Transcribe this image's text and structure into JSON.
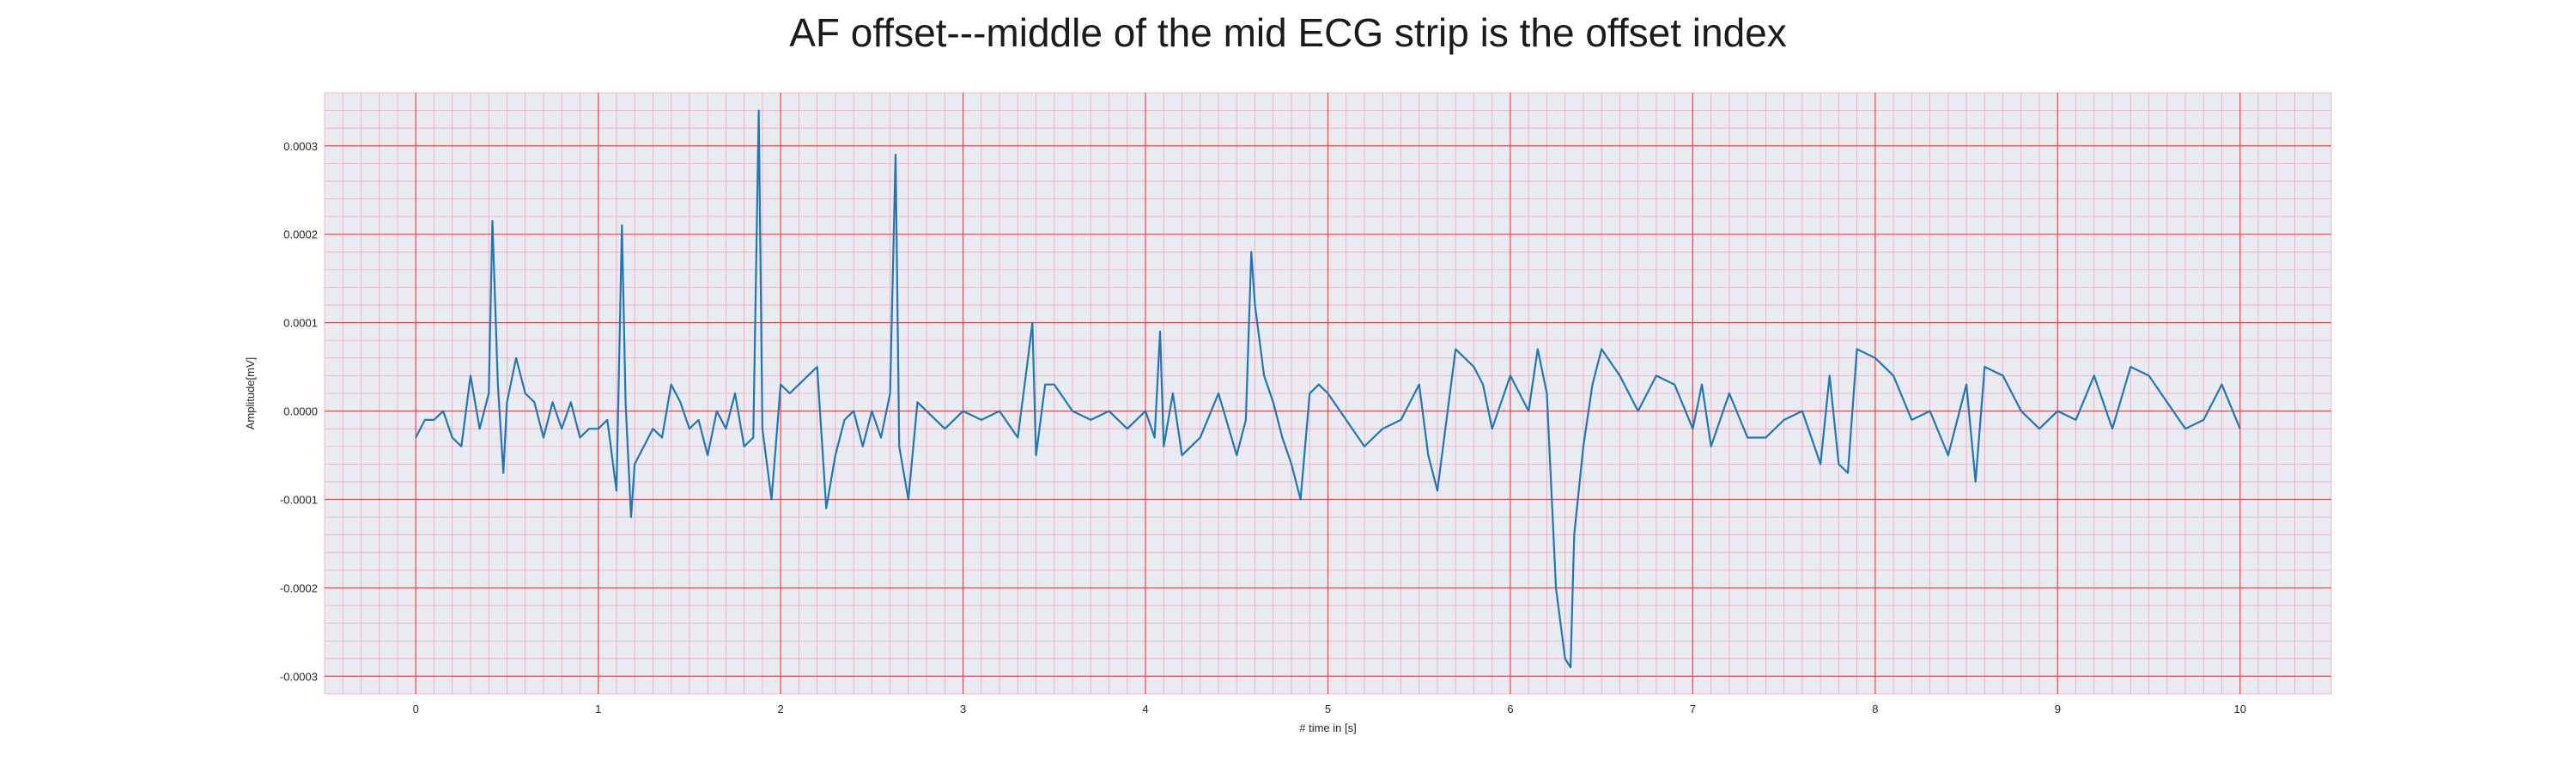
{
  "colors": {
    "plot_background": "#eaeaf2",
    "major_grid": "#ff4040",
    "minor_grid": "#f2a6b8",
    "line": "#1f77b4"
  },
  "chart_data": {
    "type": "line",
    "title": "AF offset---middle of the mid ECG strip is the offset index",
    "xlabel": "# time in [s]",
    "ylabel": "Amplitude[mV]",
    "xlim": [
      -0.5,
      10.5
    ],
    "ylim": [
      -0.00032,
      0.00036
    ],
    "xticks": [
      0,
      1,
      2,
      3,
      4,
      5,
      6,
      7,
      8,
      9,
      10
    ],
    "xtick_labels": [
      "0",
      "1",
      "2",
      "3",
      "4",
      "5",
      "6",
      "7",
      "8",
      "9",
      "10"
    ],
    "yticks": [
      -0.0003,
      -0.0002,
      -0.0001,
      0.0,
      0.0001,
      0.0002,
      0.0003
    ],
    "ytick_labels": [
      "-0.0003",
      "-0.0002",
      "-0.0001",
      "0.0000",
      "0.0001",
      "0.0002",
      "0.0003"
    ],
    "grid": true,
    "minor_grid": true,
    "series": [
      {
        "x": [
          0,
          0.05,
          0.1,
          0.15,
          0.2,
          0.25,
          0.3,
          0.35,
          0.4,
          0.42,
          0.45,
          0.48,
          0.5,
          0.55,
          0.6,
          0.65,
          0.7,
          0.75,
          0.8,
          0.85,
          0.9,
          0.95,
          1.0,
          1.05,
          1.1,
          1.13,
          1.15,
          1.18,
          1.2,
          1.25,
          1.3,
          1.35,
          1.4,
          1.45,
          1.5,
          1.55,
          1.6,
          1.65,
          1.7,
          1.75,
          1.8,
          1.85,
          1.88,
          1.9,
          1.95,
          2.0,
          2.05,
          2.1,
          2.15,
          2.2,
          2.25,
          2.3,
          2.35,
          2.4,
          2.45,
          2.5,
          2.55,
          2.6,
          2.63,
          2.65,
          2.7,
          2.75,
          2.8,
          2.9,
          3.0,
          3.1,
          3.2,
          3.3,
          3.35,
          3.38,
          3.4,
          3.45,
          3.5,
          3.6,
          3.7,
          3.8,
          3.9,
          4.0,
          4.05,
          4.08,
          4.1,
          4.15,
          4.2,
          4.3,
          4.4,
          4.5,
          4.55,
          4.58,
          4.6,
          4.65,
          4.7,
          4.75,
          4.8,
          4.85,
          4.9,
          4.95,
          5.0,
          5.1,
          5.2,
          5.3,
          5.4,
          5.5,
          5.55,
          5.6,
          5.7,
          5.8,
          5.85,
          5.9,
          6.0,
          6.1,
          6.15,
          6.2,
          6.25,
          6.3,
          6.33,
          6.35,
          6.4,
          6.45,
          6.5,
          6.6,
          6.7,
          6.8,
          6.9,
          7.0,
          7.05,
          7.1,
          7.2,
          7.3,
          7.4,
          7.5,
          7.6,
          7.7,
          7.75,
          7.8,
          7.85,
          7.9,
          8.0,
          8.1,
          8.2,
          8.3,
          8.4,
          8.5,
          8.55,
          8.6,
          8.7,
          8.8,
          8.9,
          9.0,
          9.1,
          9.2,
          9.3,
          9.4,
          9.5,
          9.6,
          9.7,
          9.8,
          9.9,
          10.0
        ],
        "values": [
          -3e-05,
          -1e-05,
          -1e-05,
          0.0,
          -3e-05,
          -4e-05,
          4e-05,
          -2e-05,
          2e-05,
          0.000215,
          3e-05,
          -7e-05,
          1e-05,
          6e-05,
          2e-05,
          1e-05,
          -3e-05,
          1e-05,
          -2e-05,
          1e-05,
          -3e-05,
          -2e-05,
          -2e-05,
          -1e-05,
          -9e-05,
          0.00021,
          1e-05,
          -0.00012,
          -6e-05,
          -4e-05,
          -2e-05,
          -3e-05,
          3e-05,
          1e-05,
          -2e-05,
          -1e-05,
          -5e-05,
          0.0,
          -2e-05,
          2e-05,
          -4e-05,
          -3e-05,
          0.00034,
          -2e-05,
          -0.0001,
          3e-05,
          2e-05,
          3e-05,
          4e-05,
          5e-05,
          -0.00011,
          -5e-05,
          -1e-05,
          0.0,
          -4e-05,
          0.0,
          -3e-05,
          2e-05,
          0.00029,
          -4e-05,
          -0.0001,
          1e-05,
          0.0,
          -2e-05,
          0.0,
          -1e-05,
          0.0,
          -3e-05,
          5e-05,
          0.0001,
          -5e-05,
          3e-05,
          3e-05,
          0.0,
          -1e-05,
          0.0,
          -2e-05,
          0.0,
          -3e-05,
          9e-05,
          -4e-05,
          2e-05,
          -5e-05,
          -3e-05,
          2e-05,
          -5e-05,
          -1e-05,
          0.00018,
          0.00012,
          4e-05,
          1e-05,
          -3e-05,
          -6e-05,
          -0.0001,
          2e-05,
          3e-05,
          2e-05,
          -1e-05,
          -4e-05,
          -2e-05,
          -1e-05,
          3e-05,
          -5e-05,
          -9e-05,
          7e-05,
          5e-05,
          3e-05,
          -2e-05,
          4e-05,
          0.0,
          7e-05,
          2e-05,
          -0.0002,
          -0.00028,
          -0.00029,
          -0.00014,
          -4e-05,
          3e-05,
          7e-05,
          4e-05,
          0.0,
          4e-05,
          3e-05,
          -2e-05,
          3e-05,
          -4e-05,
          2e-05,
          -3e-05,
          -3e-05,
          -1e-05,
          0.0,
          -6e-05,
          4e-05,
          -6e-05,
          -7e-05,
          7e-05,
          6e-05,
          4e-05,
          -1e-05,
          0.0,
          -5e-05,
          3e-05,
          -8e-05,
          5e-05,
          4e-05,
          0.0,
          -2e-05,
          0.0,
          -1e-05,
          4e-05,
          -2e-05,
          5e-05,
          4e-05,
          1e-05,
          -2e-05,
          -1e-05,
          3e-05,
          -2e-05
        ]
      }
    ]
  }
}
